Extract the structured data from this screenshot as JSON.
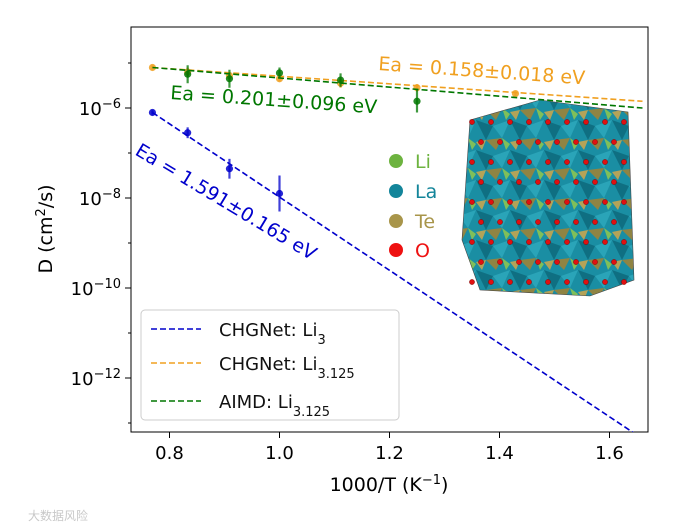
{
  "chart_data": {
    "type": "scatter",
    "xlabel": "1000/T (K",
    "xlabel_sup": "−1",
    "xlabel_close": ")",
    "ylabel": "D (cm",
    "ylabel_sup": "2",
    "ylabel_close": "/s)",
    "xlim": [
      0.73,
      1.67
    ],
    "ylim_log10": [
      -13.2,
      -4.2
    ],
    "x_ticks": [
      {
        "value": 0.8,
        "label": "0.8"
      },
      {
        "value": 1.0,
        "label": "1.0"
      },
      {
        "value": 1.2,
        "label": "1.2"
      },
      {
        "value": 1.4,
        "label": "1.4"
      },
      {
        "value": 1.6,
        "label": "1.6"
      }
    ],
    "y_ticks": [
      {
        "exp": -6,
        "base": "10",
        "sup": "−6"
      },
      {
        "exp": -8,
        "base": "10",
        "sup": "−8"
      },
      {
        "exp": -10,
        "base": "10",
        "sup": "−10"
      },
      {
        "exp": -12,
        "base": "10",
        "sup": "−12"
      }
    ],
    "series": [
      {
        "name": "CHGNet: Li3",
        "legend_prefix": "CHGNet: Li",
        "legend_sub": "3",
        "color": "#0000cc",
        "points": [
          {
            "x": 0.769,
            "logy": -6.1,
            "err": 0.05
          },
          {
            "x": 0.833,
            "logy": -6.55,
            "err": 0.12
          },
          {
            "x": 0.909,
            "logy": -7.35,
            "err": 0.22
          },
          {
            "x": 1.0,
            "logy": -7.9,
            "err": 0.4
          }
        ],
        "fit": {
          "x0": 0.769,
          "logy0": -6.1,
          "x1": 1.66,
          "logy1": -13.35
        }
      },
      {
        "name": "CHGNet: Li3.125",
        "legend_prefix": "CHGNet: Li",
        "legend_sub": "3.125",
        "color": "#f0a020",
        "points": [
          {
            "x": 0.769,
            "logy": -5.1,
            "err": 0.05
          },
          {
            "x": 0.833,
            "logy": -5.2,
            "err": 0.1
          },
          {
            "x": 0.909,
            "logy": -5.28,
            "err": 0.08
          },
          {
            "x": 1.0,
            "logy": -5.35,
            "err": 0.06
          },
          {
            "x": 1.111,
            "logy": -5.45,
            "err": 0.1
          },
          {
            "x": 1.25,
            "logy": -5.55,
            "err": 0.08
          },
          {
            "x": 1.429,
            "logy": -5.68,
            "err": 0.05
          }
        ],
        "fit": {
          "x0": 0.769,
          "logy0": -5.1,
          "x1": 1.66,
          "logy1": -5.85
        }
      },
      {
        "name": "AIMD: Li3.125",
        "legend_prefix": "AIMD: Li",
        "legend_sub": "3.125",
        "color": "#007700",
        "points": [
          {
            "x": 0.833,
            "logy": -5.25,
            "err": 0.2
          },
          {
            "x": 0.909,
            "logy": -5.35,
            "err": 0.2
          },
          {
            "x": 1.0,
            "logy": -5.22,
            "err": 0.12
          },
          {
            "x": 1.111,
            "logy": -5.38,
            "err": 0.15
          },
          {
            "x": 1.25,
            "logy": -5.85,
            "err": 0.25
          }
        ],
        "fit": {
          "x0": 0.769,
          "logy0": -5.1,
          "x1": 1.66,
          "logy1": -6.0
        }
      }
    ],
    "annotations": [
      {
        "text": "Ea = 0.158±0.018 eV",
        "color": "#f0a020"
      },
      {
        "text": "Ea = 0.201±0.096 eV",
        "color": "#007700"
      },
      {
        "text": "Ea = 1.591±0.165 eV",
        "color": "#0000cc"
      }
    ],
    "legend_location": "lower-left",
    "inset_legend": [
      {
        "label": "Li",
        "color": "#6db33f"
      },
      {
        "label": "La",
        "color": "#13859a"
      },
      {
        "label": "Te",
        "color": "#a8954a"
      },
      {
        "label": "O",
        "color": "#ee1111"
      }
    ]
  },
  "watermark": "大数据风险"
}
